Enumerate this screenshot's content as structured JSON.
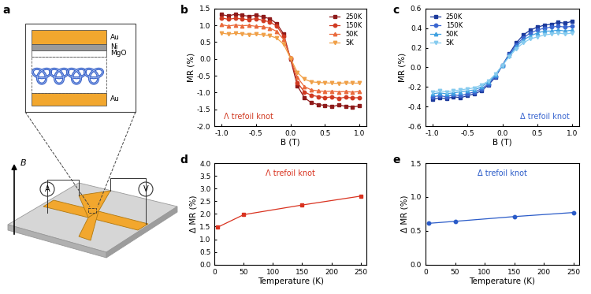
{
  "diagram": {
    "panel": "a",
    "layers": [
      "Au",
      "Ni",
      "MgO",
      "Au"
    ],
    "field_label": "B",
    "ammeter": "A",
    "voltmeter": "V"
  },
  "chart_data": [
    {
      "type": "line",
      "panel": "b",
      "annotation": "Λ trefoil knot",
      "x_label": "B (T)",
      "y_label": "MR (%)",
      "x": [
        -1.0,
        -0.9,
        -0.8,
        -0.7,
        -0.6,
        -0.5,
        -0.4,
        -0.3,
        -0.2,
        -0.1,
        0.0,
        0.1,
        0.2,
        0.3,
        0.4,
        0.5,
        0.6,
        0.7,
        0.8,
        0.9,
        1.0
      ],
      "xlim": [
        -1.1,
        1.1
      ],
      "xticks": [
        {
          "value": -1.0,
          "label": "-1.0"
        },
        {
          "value": -0.5,
          "label": "-0.5"
        },
        {
          "value": 0.0,
          "label": "0.0"
        },
        {
          "value": 0.5,
          "label": "0.5"
        },
        {
          "value": 1.0,
          "label": "1.0"
        }
      ],
      "ylim": [
        -2.0,
        1.5
      ],
      "yticks": [
        {
          "value": -2.0,
          "label": "-2.0"
        },
        {
          "value": -1.5,
          "label": "-1.5"
        },
        {
          "value": -1.0,
          "label": "-1.0"
        },
        {
          "value": -0.5,
          "label": "-0.5"
        },
        {
          "value": 0.0,
          "label": "0.0"
        },
        {
          "value": 0.5,
          "label": "0.5"
        },
        {
          "value": 1.0,
          "label": "1.0"
        },
        {
          "value": 1.5,
          "label": "1.5"
        }
      ],
      "legend": "upper right",
      "series": [
        {
          "name": "250K",
          "color": "#8e1a1a",
          "marker": "square",
          "line_style": "solid",
          "values": [
            1.32,
            1.28,
            1.33,
            1.3,
            1.27,
            1.31,
            1.25,
            1.2,
            1.05,
            0.75,
            0.0,
            -0.8,
            -1.15,
            -1.3,
            -1.36,
            -1.38,
            -1.42,
            -1.37,
            -1.41,
            -1.43,
            -1.4
          ]
        },
        {
          "name": "150K",
          "color": "#d03a22",
          "marker": "circle",
          "line_style": "solid",
          "values": [
            1.22,
            1.18,
            1.21,
            1.19,
            1.17,
            1.2,
            1.15,
            1.1,
            0.98,
            0.68,
            0.02,
            -0.7,
            -0.98,
            -1.08,
            -1.12,
            -1.15,
            -1.13,
            -1.17,
            -1.14,
            -1.16,
            -1.15
          ]
        },
        {
          "name": "50K",
          "color": "#ea6a3c",
          "marker": "triangle_up",
          "line_style": "solid",
          "values": [
            1.02,
            0.98,
            1.01,
            0.99,
            1.0,
            0.97,
            0.96,
            0.92,
            0.82,
            0.58,
            0.03,
            -0.55,
            -0.82,
            -0.92,
            -0.95,
            -0.97,
            -0.96,
            -0.98,
            -0.97,
            -0.99,
            -0.97
          ]
        },
        {
          "name": "5K",
          "color": "#f0a048",
          "marker": "triangle_down",
          "line_style": "solid",
          "values": [
            0.77,
            0.74,
            0.76,
            0.75,
            0.73,
            0.74,
            0.72,
            0.69,
            0.62,
            0.44,
            0.02,
            -0.4,
            -0.6,
            -0.68,
            -0.7,
            -0.71,
            -0.72,
            -0.73,
            -0.71,
            -0.72,
            -0.72
          ]
        }
      ]
    },
    {
      "type": "line",
      "panel": "c",
      "annotation": "Δ trefoil knot",
      "x_label": "B (T)",
      "y_label": "MR (%)",
      "x": [
        -1.0,
        -0.9,
        -0.8,
        -0.7,
        -0.6,
        -0.5,
        -0.4,
        -0.3,
        -0.2,
        -0.1,
        0.0,
        0.1,
        0.2,
        0.3,
        0.4,
        0.5,
        0.6,
        0.7,
        0.8,
        0.9,
        1.0
      ],
      "xlim": [
        -1.1,
        1.1
      ],
      "xticks": [
        {
          "value": -1.0,
          "label": "-1.0"
        },
        {
          "value": -0.5,
          "label": "-0.5"
        },
        {
          "value": 0.0,
          "label": "0.0"
        },
        {
          "value": 0.5,
          "label": "0.5"
        },
        {
          "value": 1.0,
          "label": "1.0"
        }
      ],
      "ylim": [
        -0.6,
        0.6
      ],
      "yticks": [
        -0.6,
        -0.4,
        -0.2,
        {
          "value": 0.0,
          "label": "0.0"
        },
        0.2,
        0.4,
        0.6
      ],
      "legend": "upper left",
      "series": [
        {
          "name": "250K",
          "color": "#1c3a9c",
          "marker": "square",
          "line_style": "solid",
          "values": [
            -0.33,
            -0.31,
            -0.32,
            -0.3,
            -0.31,
            -0.29,
            -0.27,
            -0.24,
            -0.18,
            -0.1,
            0.02,
            0.14,
            0.25,
            0.33,
            0.38,
            0.41,
            0.43,
            0.44,
            0.46,
            0.45,
            0.47
          ]
        },
        {
          "name": "150K",
          "color": "#3a66d0",
          "marker": "circle",
          "line_style": "solid",
          "values": [
            -0.3,
            -0.29,
            -0.3,
            -0.28,
            -0.29,
            -0.27,
            -0.25,
            -0.22,
            -0.17,
            -0.09,
            0.02,
            0.13,
            0.23,
            0.3,
            0.35,
            0.38,
            0.4,
            0.41,
            0.42,
            0.41,
            0.42
          ]
        },
        {
          "name": "50K",
          "color": "#3fa0e0",
          "marker": "triangle_up",
          "line_style": "solid",
          "values": [
            -0.27,
            -0.26,
            -0.27,
            -0.26,
            -0.25,
            -0.24,
            -0.23,
            -0.2,
            -0.15,
            -0.08,
            0.02,
            0.12,
            0.21,
            0.28,
            0.32,
            0.35,
            0.37,
            0.37,
            0.38,
            0.37,
            0.38
          ]
        },
        {
          "name": "5K",
          "color": "#86cbef",
          "marker": "triangle_down",
          "line_style": "solid",
          "values": [
            -0.25,
            -0.24,
            -0.25,
            -0.24,
            -0.23,
            -0.22,
            -0.21,
            -0.18,
            -0.14,
            -0.07,
            0.02,
            0.11,
            0.19,
            0.25,
            0.29,
            0.31,
            0.33,
            0.34,
            0.35,
            0.34,
            0.35
          ]
        }
      ]
    },
    {
      "type": "line",
      "panel": "d",
      "annotation": "Λ trefoil knot",
      "x_label": "Temperature (K)",
      "y_label": "Δ MR (%)",
      "x": [
        5,
        50,
        150,
        250
      ],
      "xlim": [
        0,
        260
      ],
      "xticks": [
        0,
        50,
        100,
        150,
        200,
        250
      ],
      "ylim": [
        0.0,
        4.0
      ],
      "yticks": [
        {
          "value": 0.0,
          "label": "0.0"
        },
        {
          "value": 0.5,
          "label": "0.5"
        },
        {
          "value": 1.0,
          "label": "1.0"
        },
        {
          "value": 1.5,
          "label": "1.5"
        },
        {
          "value": 2.0,
          "label": "2.0"
        },
        {
          "value": 2.5,
          "label": "2.5"
        },
        {
          "value": 3.0,
          "label": "3.0"
        },
        {
          "value": 3.5,
          "label": "3.5"
        },
        {
          "value": 4.0,
          "label": "4.0"
        }
      ],
      "series": [
        {
          "color": "#d9321f",
          "marker": "square",
          "line_style": "solid",
          "values": [
            1.47,
            1.97,
            2.35,
            2.7
          ]
        }
      ]
    },
    {
      "type": "line",
      "panel": "e",
      "annotation": "Δ trefoil knot",
      "x_label": "Temperature (K)",
      "y_label": "Δ MR (%)",
      "x": [
        5,
        50,
        150,
        250
      ],
      "xlim": [
        0,
        260
      ],
      "xticks": [
        0,
        50,
        100,
        150,
        200,
        250
      ],
      "ylim": [
        0.0,
        1.5
      ],
      "yticks": [
        {
          "value": 0.0,
          "label": "0.0"
        },
        {
          "value": 0.5,
          "label": "0.5"
        },
        {
          "value": 1.0,
          "label": "1.0"
        },
        {
          "value": 1.5,
          "label": "1.5"
        }
      ],
      "series": [
        {
          "color": "#2a5bc8",
          "marker": "circle",
          "line_style": "solid",
          "values": [
            0.61,
            0.64,
            0.71,
            0.77
          ]
        }
      ]
    }
  ]
}
